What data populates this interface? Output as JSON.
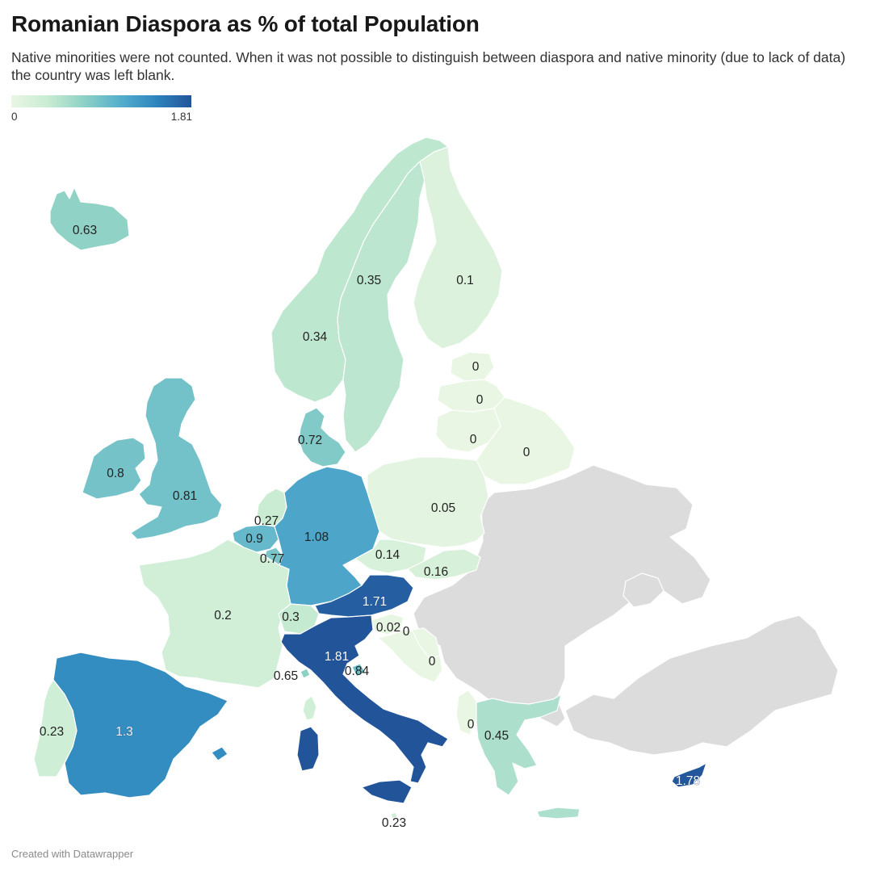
{
  "header": {
    "title": "Romanian Diaspora as % of total Population",
    "subtitle": "Native minorities were not counted. When it was not possible to distinguish between diaspora and native minority (due to lack of data) the country was left blank."
  },
  "legend": {
    "min_label": "0",
    "max_label": "1.81",
    "color_min": "#e9f6e4",
    "color_max": "#22549a"
  },
  "no_data_color": "#dcdcdc",
  "regions": [
    {
      "name": "Iceland",
      "value": 0.63,
      "label": "0.63"
    },
    {
      "name": "Norway",
      "value": 0.34,
      "label": "0.34"
    },
    {
      "name": "Sweden",
      "value": 0.35,
      "label": "0.35"
    },
    {
      "name": "Finland",
      "value": 0.1,
      "label": "0.1"
    },
    {
      "name": "Estonia",
      "value": 0,
      "label": "0"
    },
    {
      "name": "Latvia",
      "value": 0,
      "label": "0"
    },
    {
      "name": "Lithuania",
      "value": 0,
      "label": "0"
    },
    {
      "name": "Belarus",
      "value": 0,
      "label": "0"
    },
    {
      "name": "Denmark",
      "value": 0.72,
      "label": "0.72"
    },
    {
      "name": "Ireland",
      "value": 0.8,
      "label": "0.8"
    },
    {
      "name": "United Kingdom",
      "value": 0.81,
      "label": "0.81"
    },
    {
      "name": "Netherlands",
      "value": 0.27,
      "label": "0.27"
    },
    {
      "name": "Belgium",
      "value": 0.9,
      "label": "0.9"
    },
    {
      "name": "Luxembourg",
      "value": 0.77,
      "label": "0.77"
    },
    {
      "name": "Germany",
      "value": 1.08,
      "label": "1.08"
    },
    {
      "name": "Poland",
      "value": 0.05,
      "label": "0.05"
    },
    {
      "name": "Czechia",
      "value": 0.14,
      "label": "0.14"
    },
    {
      "name": "Slovakia",
      "value": 0.16,
      "label": "0.16"
    },
    {
      "name": "Austria",
      "value": 1.71,
      "label": "1.71"
    },
    {
      "name": "Slovenia",
      "value": 0.02,
      "label": "0.02"
    },
    {
      "name": "Croatia",
      "value": 0,
      "label": "0"
    },
    {
      "name": "Bosnia and Herzegovina",
      "value": 0,
      "label": "0"
    },
    {
      "name": "France",
      "value": 0.2,
      "label": "0.2"
    },
    {
      "name": "Switzerland",
      "value": 0.3,
      "label": "0.3"
    },
    {
      "name": "Monaco",
      "value": 0.65,
      "label": "0.65"
    },
    {
      "name": "Italy",
      "value": 1.81,
      "label": "1.81"
    },
    {
      "name": "San Marino",
      "value": 0.84,
      "label": "0.84"
    },
    {
      "name": "Malta",
      "value": 0.23,
      "label": "0.23"
    },
    {
      "name": "Spain",
      "value": 1.3,
      "label": "1.3"
    },
    {
      "name": "Portugal",
      "value": 0.23,
      "label": "0.23"
    },
    {
      "name": "Albania",
      "value": 0,
      "label": "0"
    },
    {
      "name": "Greece",
      "value": 0.45,
      "label": "0.45"
    },
    {
      "name": "Cyprus",
      "value": 1.78,
      "label": "1.78"
    }
  ],
  "footer": {
    "credit": "Created with Datawrapper"
  }
}
